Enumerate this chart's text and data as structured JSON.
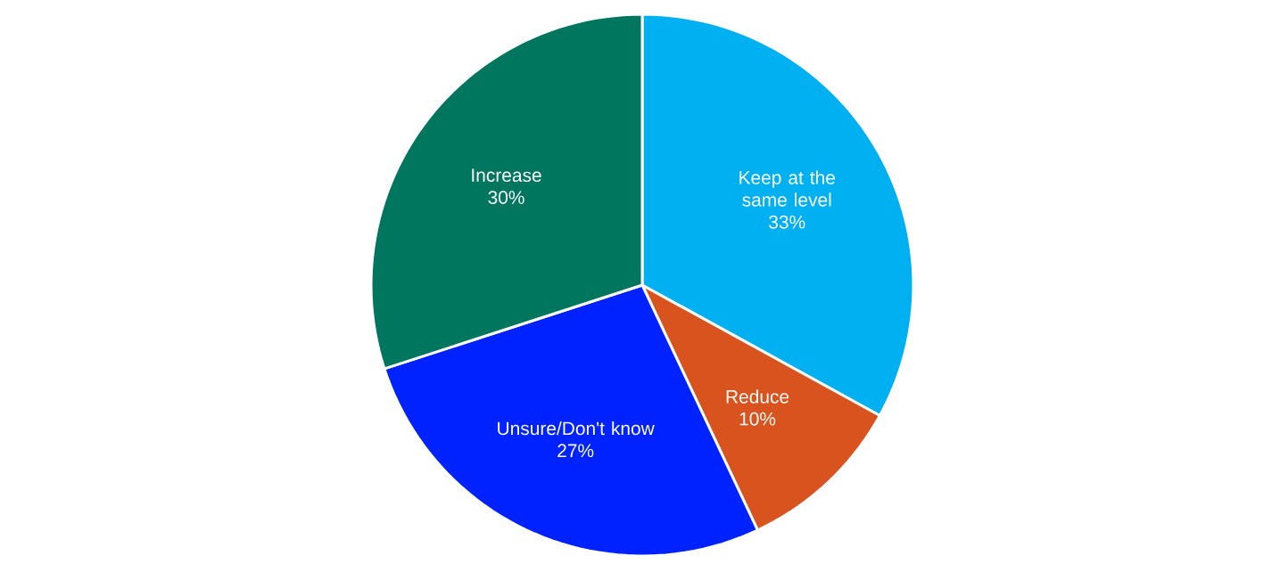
{
  "chart_data": {
    "type": "pie",
    "categories": [
      "Keep at the same level",
      "Reduce",
      "Unsure/Don't know",
      "Increase"
    ],
    "values": [
      33,
      10,
      27,
      30
    ],
    "value_labels": [
      "33%",
      "10%",
      "27%",
      "30%"
    ],
    "colors": [
      "#00b0f0",
      "#d9531e",
      "#0022ff",
      "#00765e"
    ]
  }
}
